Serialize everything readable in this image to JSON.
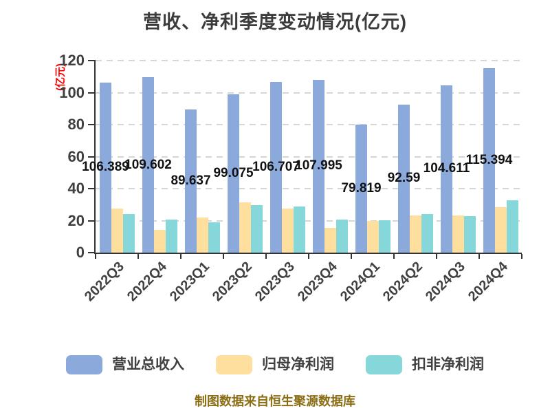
{
  "title": "营收、净利季度变动情况(亿元)",
  "y_axis": {
    "name": "(亿元)",
    "ticks": [
      0,
      20,
      40,
      60,
      80,
      100,
      120
    ]
  },
  "footer": "制图数据来自恒生聚源数据库",
  "legend": {
    "items": [
      {
        "label": "营业总收入",
        "color": "#8CA9DC"
      },
      {
        "label": "归母净利润",
        "color": "#FFDF9E"
      },
      {
        "label": "扣非净利润",
        "color": "#86D7DA"
      }
    ]
  },
  "chart_data": {
    "type": "bar",
    "title": "营收、净利季度变动情况(亿元)",
    "categories": [
      "2022Q3",
      "2022Q4",
      "2023Q1",
      "2023Q2",
      "2023Q3",
      "2023Q4",
      "2024Q1",
      "2024Q2",
      "2024Q3",
      "2024Q4"
    ],
    "series": [
      {
        "name": "营业总收入",
        "color": "#8CA9DC",
        "values": [
          106.389,
          109.602,
          89.637,
          99.075,
          106.707,
          107.995,
          79.819,
          92.59,
          104.611,
          115.394
        ],
        "labels": [
          "106.389",
          "109.602",
          "89.637",
          "99.075",
          "106.707",
          "107.995",
          "79.819",
          "92.59",
          "104.611",
          "115.394"
        ],
        "labels_visible": true
      },
      {
        "name": "归母净利润",
        "color": "#FFDF9E",
        "values": [
          27.5,
          14.3,
          21.8,
          31.5,
          27.6,
          15.4,
          19.8,
          23.2,
          23.2,
          28.6
        ],
        "labels_visible": false
      },
      {
        "name": "扣非净利润",
        "color": "#86D7DA",
        "values": [
          24.0,
          20.8,
          19.0,
          29.5,
          28.8,
          20.5,
          20.3,
          24.0,
          22.8,
          32.9
        ],
        "labels_visible": false
      }
    ],
    "xlabel": "",
    "ylabel": "(亿元)",
    "ylim": [
      0,
      120
    ],
    "yticks": [
      0,
      20,
      40,
      60,
      80,
      100,
      120
    ],
    "grid": "horizontal dashed",
    "x_tick_rotation": 45,
    "legend_position": "bottom",
    "data_label_position": "middle of 营业总收入 bars"
  },
  "colors": {
    "background": "#ffffff",
    "title": "#3c3c3c",
    "axis_line": "#333333",
    "tick_label": "#404040",
    "grid_line": "#d6d6d6",
    "data_label": "#111111",
    "y_axis_name": "#ff0000",
    "footer": "#8a6d14"
  }
}
